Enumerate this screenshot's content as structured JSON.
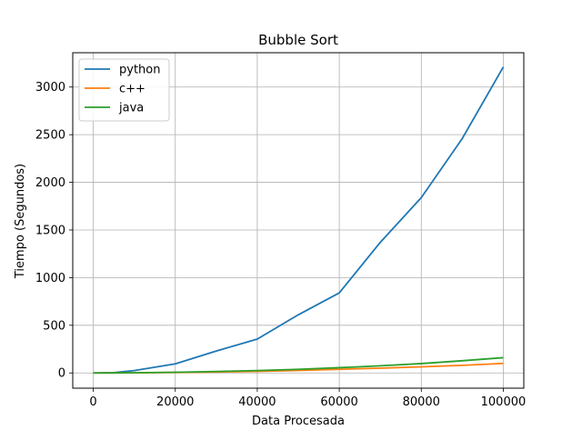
{
  "chart_data": {
    "type": "line",
    "title": "Bubble Sort",
    "xlabel": "Data Procesada",
    "ylabel": "Tiempo (Segundos)",
    "xlim": [
      -5000,
      105000
    ],
    "ylim": [
      -160,
      3360
    ],
    "xticks": [
      0,
      20000,
      40000,
      60000,
      80000,
      100000
    ],
    "xtick_labels": [
      "0",
      "20000",
      "40000",
      "60000",
      "80000",
      "100000"
    ],
    "yticks": [
      0,
      500,
      1000,
      1500,
      2000,
      2500,
      3000
    ],
    "ytick_labels": [
      "0",
      "500",
      "1000",
      "1500",
      "2000",
      "2500",
      "3000"
    ],
    "grid": true,
    "legend_position": "top-left",
    "x": [
      0,
      5000,
      10000,
      20000,
      30000,
      40000,
      50000,
      60000,
      70000,
      80000,
      90000,
      100000
    ],
    "series": [
      {
        "name": "python",
        "color": "#1f77b4",
        "values": [
          0,
          3,
          25,
          95,
          230,
          355,
          610,
          840,
          1370,
          1840,
          2460,
          3210
        ]
      },
      {
        "name": "c++",
        "color": "#ff7f0e",
        "values": [
          0,
          0.3,
          1,
          5,
          10,
          17,
          26,
          38,
          50,
          64,
          80,
          100
        ]
      },
      {
        "name": "java",
        "color": "#2ca02c",
        "values": [
          0,
          0.5,
          2,
          7,
          15,
          25,
          38,
          55,
          75,
          98,
          128,
          160
        ]
      }
    ]
  }
}
